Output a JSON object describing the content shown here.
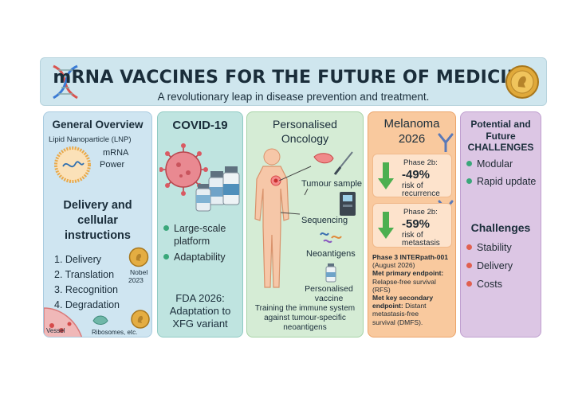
{
  "header": {
    "title": "mRNA VACCINES FOR THE FUTURE OF MEDICINE",
    "subtitle": "A revolutionary leap in disease prevention and treatment."
  },
  "overview": {
    "heading": "General Overview",
    "lnp_label": "Lipid Nanoparticle (LNP)",
    "mrna_label": "mRNA",
    "power_label": "Power",
    "delivery_heading": [
      "Delivery and",
      "cellular",
      "instructions"
    ],
    "steps": [
      "1. Delivery",
      "2. Translation",
      "3. Recognition",
      "4. Degradation"
    ],
    "nobel_label": "Nobel",
    "nobel_year": "2023",
    "vessel_label": "Vessel",
    "ribosomes_label": "Ribosomes, etc."
  },
  "covid": {
    "heading": "COVID-19",
    "bullets": [
      "Large-scale",
      "platform",
      "Adaptability"
    ],
    "fda": [
      "FDA 2026:",
      "Adaptation to",
      "XFG variant"
    ]
  },
  "oncology": {
    "heading": [
      "Personalised",
      "Oncology"
    ],
    "tumour_sample": "Tumour sample",
    "sequencing": "Sequencing",
    "neoantigens": "Neoantigens",
    "vaccine": [
      "Personalised",
      "vaccine"
    ],
    "footer": [
      "Training the immune system",
      "against tumour-specific",
      "neoantigens"
    ]
  },
  "melanoma": {
    "heading": [
      "Melanoma",
      "2026"
    ],
    "box1": {
      "phase": "Phase 2b:",
      "value": "-49%",
      "desc": [
        "risk of",
        "recurrence"
      ]
    },
    "box2": {
      "phase": "Phase 2b:",
      "value": "-59%",
      "desc": [
        "risk of",
        "metastasis"
      ]
    },
    "trial": [
      "Phase 3 INTERpath-001",
      "(August 2026)"
    ],
    "primary_label": "Met primary endpoint:",
    "primary_text": [
      "Relapse-free survival",
      "(RFS)"
    ],
    "secondary_label": [
      "Met key secondary",
      "endpoint:"
    ],
    "secondary_text": [
      "Distant",
      "metastasis-free",
      "survival (DMFS)."
    ]
  },
  "future": {
    "heading": [
      "Potential and",
      "Future",
      "CHALLENGES"
    ],
    "potential": [
      "Modular",
      "Rapid update"
    ],
    "challenges_heading": "Challenges",
    "challenges": [
      "Stability",
      "Delivery",
      "Costs"
    ]
  },
  "colors": {
    "green_arrow": "#4caf50",
    "bullet_green": "#3aa77a",
    "bullet_red": "#e06050"
  }
}
